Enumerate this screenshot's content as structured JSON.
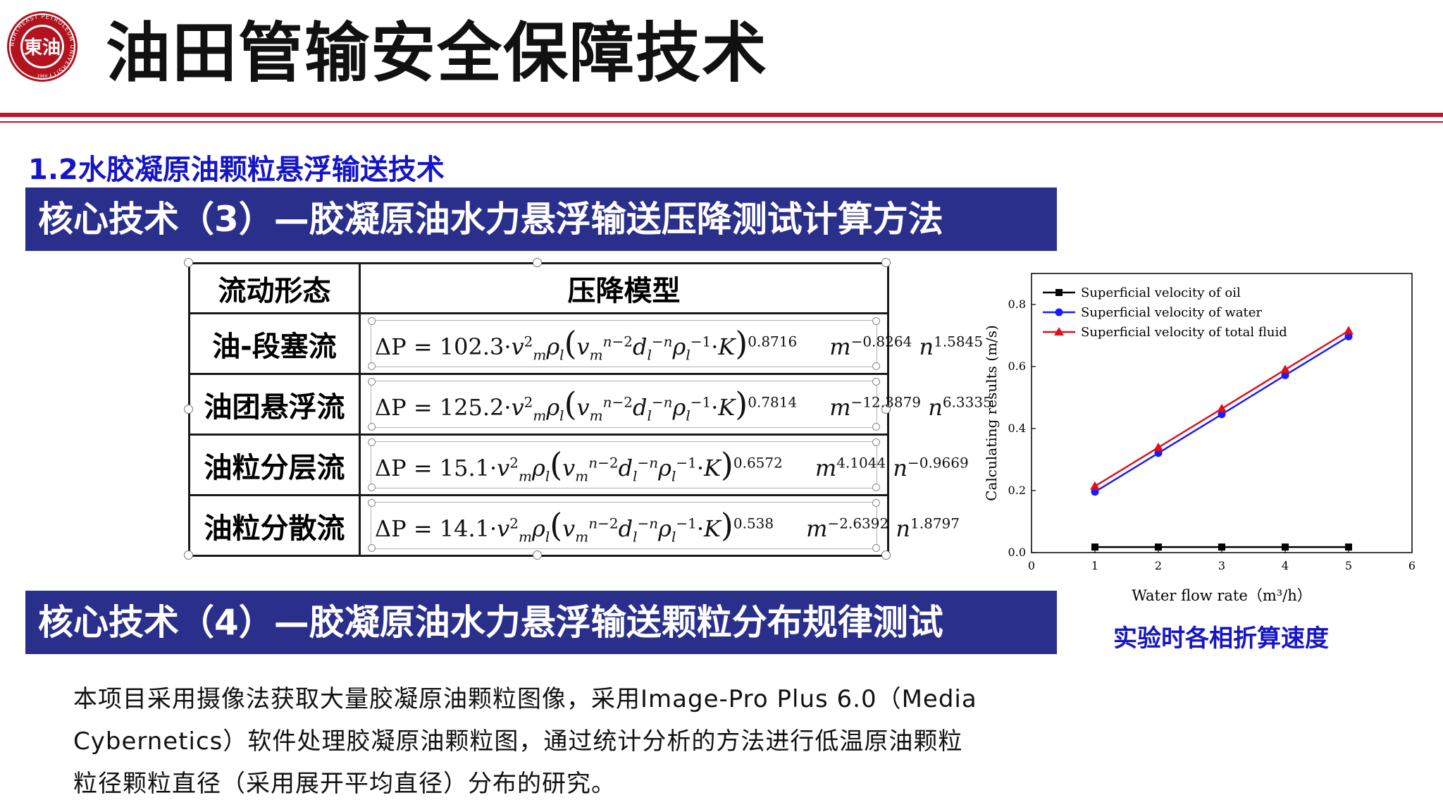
{
  "header": {
    "logo_text": "東油",
    "logo_ring_text": "NORTHEAST PETROLEUM UNIVERSITY",
    "logo_year": "1960",
    "title": "油田管输安全保障技术"
  },
  "section_title": "1.2水胶凝原油颗粒悬浮输送技术",
  "banner3": "核心技术（3）—胶凝原油水力悬浮输送压降测试计算方法",
  "banner4": "核心技术（4）—胶凝原油水力悬浮输送颗粒分布规律测试",
  "table": {
    "headers": [
      "流动形态",
      "压降模型"
    ],
    "rows": [
      {
        "flow": "油-段塞流",
        "coef": "102.3",
        "k_exp": "0.8716",
        "m_exp": "−0.8264",
        "n_exp": "1.5845"
      },
      {
        "flow": "油团悬浮流",
        "coef": "125.2",
        "k_exp": "0.7814",
        "m_exp": "−12.3879",
        "n_exp": "6.3335"
      },
      {
        "flow": "油粒分层流",
        "coef": "15.1",
        "k_exp": "0.6572",
        "m_exp": "4.1044",
        "n_exp": "−0.9669"
      },
      {
        "flow": "油粒分散流",
        "coef": "14.1",
        "k_exp": "0.538",
        "m_exp": "−2.6392",
        "n_exp": "1.8797"
      }
    ]
  },
  "chart_data": {
    "type": "line",
    "title": "",
    "xlabel": "Water flow rate（m³/h）",
    "ylabel": "Calculating results (m/s)",
    "xlim": [
      0,
      6
    ],
    "ylim": [
      0,
      0.9
    ],
    "xticks": [
      "0",
      "1",
      "2",
      "3",
      "4",
      "5",
      "6"
    ],
    "yticks": [
      "0.0",
      "0.2",
      "0.4",
      "0.6",
      "0.8"
    ],
    "x": [
      1,
      2,
      3,
      4,
      5
    ],
    "legend_position": "top-left",
    "series": [
      {
        "name": "Superficial velocity of oil",
        "color": "#000000",
        "marker": "square",
        "values": [
          0.018,
          0.018,
          0.018,
          0.018,
          0.018
        ]
      },
      {
        "name": "Superficial velocity of water",
        "color": "#1a1aff",
        "marker": "circle",
        "values": [
          0.196,
          0.321,
          0.446,
          0.572,
          0.697
        ]
      },
      {
        "name": "Superficial velocity of total fluid",
        "color": "#e0101a",
        "marker": "triangle",
        "values": [
          0.214,
          0.339,
          0.464,
          0.59,
          0.715
        ]
      }
    ]
  },
  "chart_caption": "实验时各相折算速度",
  "paragraph": [
    "本项目采用摄像法获取大量胶凝原油颗粒图像，采用Image-Pro Plus 6.0（Media",
    "Cybernetics）软件处理胶凝原油颗粒图，通过统计分析的方法进行低温原油颗粒",
    "粒径颗粒直径（采用展开平均直径）分布的研究。"
  ],
  "colors": {
    "accent_red": "#c8102e",
    "banner_blue": "#2a2f8c",
    "title_blue": "#1515c8"
  }
}
